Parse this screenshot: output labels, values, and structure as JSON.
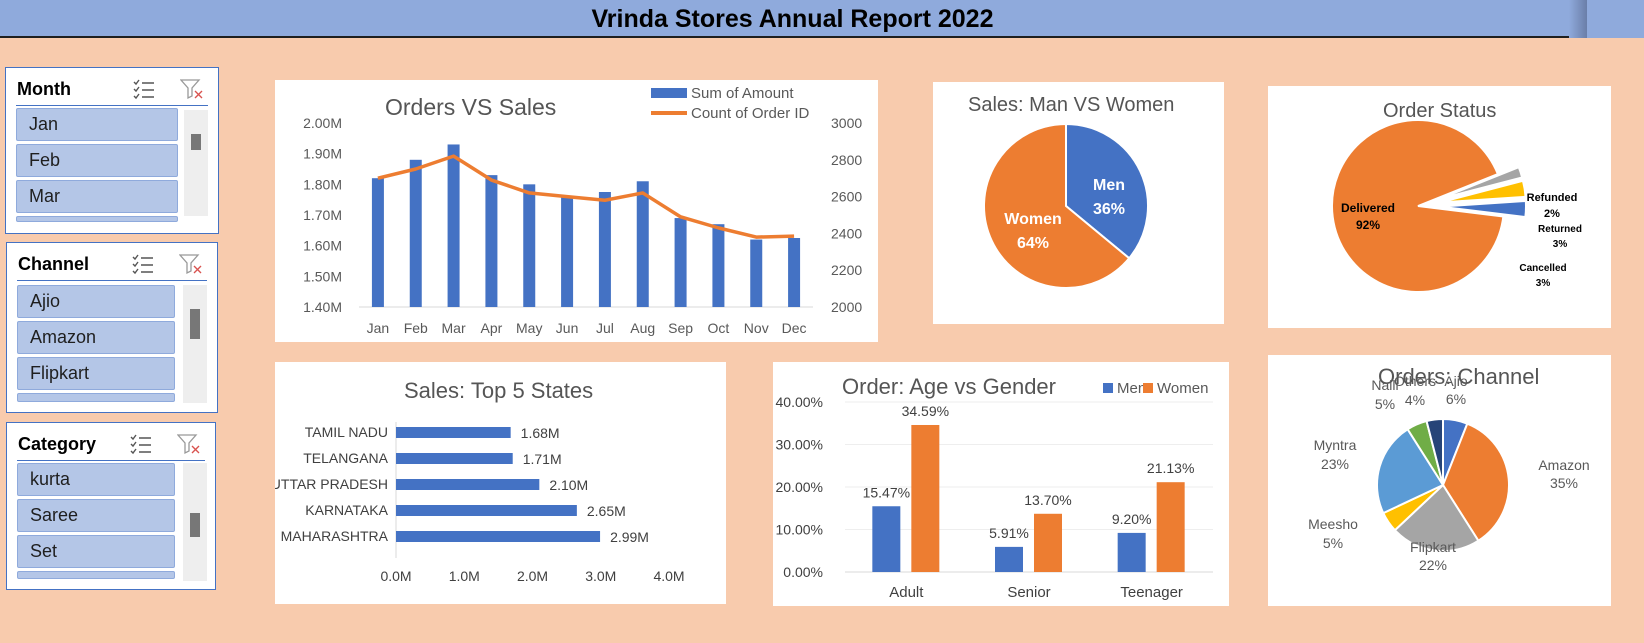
{
  "header": {
    "title": "Vrinda Stores Annual Report 2022"
  },
  "colors": {
    "blue": "#4472c4",
    "orange": "#ed7d31",
    "gray": "#a5a5a5",
    "yellow": "#ffc000",
    "lightblue": "#5b9bd5",
    "green": "#70ad47",
    "navy": "#264478"
  },
  "slicers": {
    "month": {
      "title": "Month",
      "items": [
        "Jan",
        "Feb",
        "Mar"
      ]
    },
    "channel": {
      "title": "Channel",
      "items": [
        "Ajio",
        "Amazon",
        "Flipkart"
      ]
    },
    "category": {
      "title": "Category",
      "items": [
        "kurta",
        "Saree",
        "Set"
      ]
    }
  },
  "charts": {
    "orders_vs_sales": {
      "title": "Orders VS Sales",
      "legend": [
        "Sum of Amount",
        "Count of Order ID"
      ],
      "y_left_ticks": [
        "2.00M",
        "1.90M",
        "1.80M",
        "1.70M",
        "1.60M",
        "1.50M",
        "1.40M"
      ],
      "y_right_ticks": [
        "3000",
        "2800",
        "2600",
        "2400",
        "2200",
        "2000"
      ]
    },
    "man_vs_women": {
      "title": "Sales: Man VS Women",
      "labels": [
        "Men",
        "36%",
        "Women",
        "64%"
      ]
    },
    "order_status": {
      "title": "Order Status",
      "labels": [
        "Delivered",
        "92%",
        "Refunded",
        "2%",
        "Returned",
        "3%",
        "Cancelled",
        "3%"
      ]
    },
    "top5_states": {
      "title": "Sales: Top 5 States",
      "x_ticks": [
        "0.0M",
        "1.0M",
        "2.0M",
        "3.0M",
        "4.0M"
      ]
    },
    "age_gender": {
      "title": "Order: Age vs Gender",
      "legend": [
        "Men",
        "Women"
      ],
      "y_ticks": [
        "40.00%",
        "30.00%",
        "20.00%",
        "10.00%",
        "0.00%"
      ]
    },
    "orders_channel": {
      "title": "Orders: Channel"
    }
  },
  "chart_data": [
    {
      "type": "bar",
      "title": "Orders VS Sales",
      "categories": [
        "Jan",
        "Feb",
        "Mar",
        "Apr",
        "May",
        "Jun",
        "Jul",
        "Aug",
        "Sep",
        "Oct",
        "Nov",
        "Dec"
      ],
      "series": [
        {
          "name": "Sum of Amount",
          "type": "bar",
          "axis": "left",
          "values": [
            1.82,
            1.88,
            1.93,
            1.83,
            1.8,
            1.76,
            1.775,
            1.81,
            1.69,
            1.67,
            1.62,
            1.625
          ]
        },
        {
          "name": "Count of Order ID",
          "type": "line",
          "axis": "right",
          "values": [
            2700,
            2750,
            2820,
            2690,
            2620,
            2600,
            2580,
            2620,
            2490,
            2430,
            2380,
            2385
          ]
        }
      ],
      "ylim_left": [
        1.4,
        2.0
      ],
      "ylim_right": [
        2000,
        3000
      ]
    },
    {
      "type": "pie",
      "title": "Sales: Man VS Women",
      "slices": [
        {
          "label": "Men",
          "value": 36
        },
        {
          "label": "Women",
          "value": 64
        }
      ]
    },
    {
      "type": "pie",
      "title": "Order Status",
      "slices": [
        {
          "label": "Delivered",
          "value": 92
        },
        {
          "label": "Refunded",
          "value": 2
        },
        {
          "label": "Returned",
          "value": 3
        },
        {
          "label": "Cancelled",
          "value": 3
        }
      ]
    },
    {
      "type": "bar",
      "title": "Sales: Top 5 States",
      "orientation": "horizontal",
      "categories": [
        "TAMIL NADU",
        "TELANGANA",
        "UTTAR PRADESH",
        "KARNATAKA",
        "MAHARASHTRA"
      ],
      "values": [
        1.68,
        1.71,
        2.1,
        2.65,
        2.99
      ],
      "value_labels": [
        "1.68M",
        "1.71M",
        "2.10M",
        "2.65M",
        "2.99M"
      ],
      "xlim": [
        0,
        4
      ]
    },
    {
      "type": "bar",
      "title": "Order: Age vs Gender",
      "categories": [
        "Adult",
        "Senior",
        "Teenager"
      ],
      "series": [
        {
          "name": "Men",
          "values": [
            15.47,
            5.91,
            9.2
          ],
          "labels": [
            "15.47%",
            "5.91%",
            "9.20%"
          ]
        },
        {
          "name": "Women",
          "values": [
            34.59,
            13.7,
            21.13
          ],
          "labels": [
            "34.59%",
            "13.70%",
            "21.13%"
          ]
        }
      ],
      "ylim": [
        0,
        40
      ]
    },
    {
      "type": "pie",
      "title": "Orders: Channel",
      "slices": [
        {
          "label": "Ajio",
          "value": 6,
          "text": "6%"
        },
        {
          "label": "Amazon",
          "value": 35,
          "text": "35%"
        },
        {
          "label": "Flipkart",
          "value": 22,
          "text": "22%"
        },
        {
          "label": "Meesho",
          "value": 5,
          "text": "5%"
        },
        {
          "label": "Myntra",
          "value": 23,
          "text": "23%"
        },
        {
          "label": "Nalli",
          "value": 5,
          "text": "5%"
        },
        {
          "label": "Others",
          "value": 4,
          "text": "4%"
        }
      ]
    }
  ]
}
